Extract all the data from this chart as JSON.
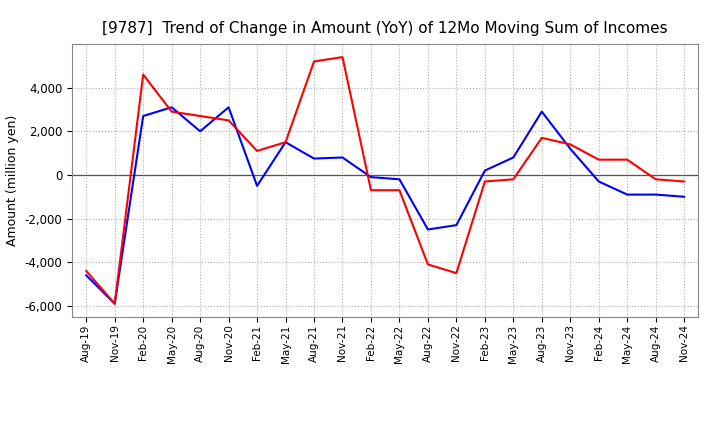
{
  "title": "[9787]  Trend of Change in Amount (YoY) of 12Mo Moving Sum of Incomes",
  "ylabel": "Amount (million yen)",
  "xlabels": [
    "Aug-19",
    "Nov-19",
    "Feb-20",
    "May-20",
    "Aug-20",
    "Nov-20",
    "Feb-21",
    "May-21",
    "Aug-21",
    "Nov-21",
    "Feb-22",
    "May-22",
    "Aug-22",
    "Nov-22",
    "Feb-23",
    "May-23",
    "Aug-23",
    "Nov-23",
    "Feb-24",
    "May-24",
    "Aug-24",
    "Nov-24"
  ],
  "ordinary_income": [
    -4600,
    -5900,
    2700,
    3100,
    2000,
    3100,
    -500,
    1500,
    750,
    800,
    -100,
    -200,
    -2500,
    -2300,
    200,
    800,
    2900,
    1200,
    -300,
    -900,
    -900,
    -1000
  ],
  "net_income": [
    -4400,
    -5900,
    4600,
    2900,
    2700,
    2500,
    1100,
    1500,
    5200,
    5400,
    -700,
    -700,
    -4100,
    -4500,
    -300,
    -200,
    1700,
    1400,
    700,
    700,
    -200,
    -300
  ],
  "ordinary_color": "#0000ff",
  "net_color": "#ff0000",
  "ylim": [
    -6500,
    6000
  ],
  "yticks": [
    -6000,
    -4000,
    -2000,
    0,
    2000,
    4000
  ],
  "background": "#ffffff",
  "grid_color": "#b0b0b0"
}
